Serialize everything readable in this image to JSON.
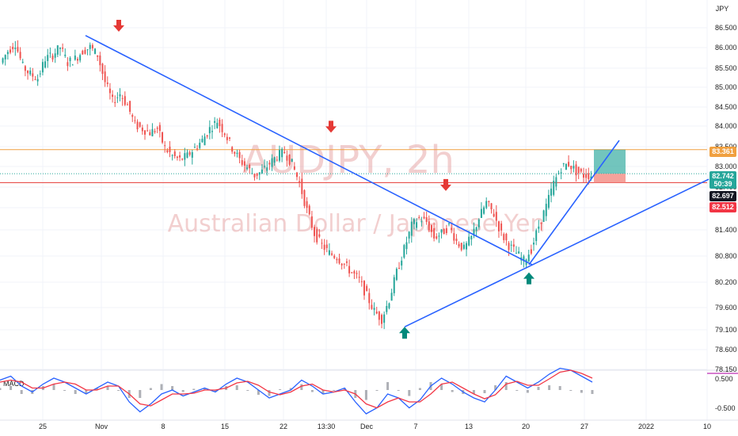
{
  "chart_data": {
    "type": "candlestick",
    "symbol_corner": "JPY",
    "watermark": {
      "symbol": "AUDJPY, 2h",
      "name": "Australian Dollar / Japanese Yen"
    },
    "y_axis": {
      "ticks": [
        "86.500",
        "86.000",
        "85.500",
        "85.000",
        "84.500",
        "84.000",
        "83.500",
        "83.000",
        "82.400",
        "81.900",
        "81.400",
        "80.800",
        "80.200",
        "79.600",
        "79.100",
        "78.600",
        "78.150"
      ],
      "range": [
        78.15,
        86.7
      ]
    },
    "x_axis": {
      "ticks": [
        "25",
        "Nov",
        "8",
        "15",
        "22",
        "13:30",
        "Dec",
        "7",
        "13",
        "20",
        "27",
        "2022",
        "10"
      ]
    },
    "price_tags": [
      {
        "label": "83.361",
        "value": 83.361,
        "color": "#f0a040",
        "text_color": "#ffffff"
      },
      {
        "label": "82.742",
        "sublabel": "50:39",
        "value": 82.742,
        "color": "#26a69a",
        "text_color": "#ffffff"
      },
      {
        "label": "82.697",
        "value": 82.697,
        "color": "#131722",
        "text_color": "#ffffff"
      },
      {
        "label": "82.512",
        "value": 82.512,
        "color": "#f23645",
        "text_color": "#ffffff"
      }
    ],
    "horizontal_lines": [
      {
        "name": "resistance",
        "value": 83.361,
        "color": "#f0a040"
      },
      {
        "name": "stop",
        "value": 82.512,
        "color": "#e53935"
      }
    ],
    "price_series": [
      85.6,
      85.9,
      86.1,
      85.5,
      85.3,
      85.2,
      85.7,
      85.8,
      86.0,
      85.6,
      85.7,
      85.9,
      86.0,
      85.8,
      85.1,
      84.6,
      84.8,
      84.5,
      84.0,
      83.9,
      83.8,
      83.9,
      83.4,
      83.2,
      83.1,
      83.2,
      83.4,
      83.6,
      83.9,
      84.1,
      83.8,
      83.4,
      83.1,
      82.9,
      82.7,
      82.8,
      83.0,
      83.2,
      83.3,
      83.0,
      82.5,
      81.8,
      81.2,
      80.9,
      80.7,
      80.6,
      80.4,
      80.2,
      80.0,
      79.6,
      79.2,
      79.0,
      79.5,
      80.2,
      80.8,
      81.4,
      81.6,
      81.5,
      81.1,
      81.2,
      81.4,
      81.0,
      80.8,
      81.1,
      81.6,
      82.0,
      81.7,
      81.2,
      80.9,
      80.7,
      80.5,
      80.8,
      81.4,
      81.9,
      82.5,
      82.9,
      83.0,
      82.8,
      82.7,
      82.7
    ],
    "trendlines": [
      {
        "name": "downtrend",
        "color": "#2962ff",
        "from": {
          "date": "Oct 20",
          "price": 86.3
        },
        "to": {
          "date": "Dec 18",
          "price": 80.4
        }
      },
      {
        "name": "uptrend-low",
        "color": "#2962ff",
        "from": {
          "date": "Dec 3",
          "price": 78.8
        },
        "to": {
          "date": "Jan 10",
          "price": 82.6
        }
      },
      {
        "name": "uptrend-steep",
        "color": "#2962ff",
        "from": {
          "date": "Dec 20",
          "price": 80.4
        },
        "to": {
          "date": "Dec 30",
          "price": 83.6
        }
      }
    ],
    "markers": [
      {
        "type": "down-arrow",
        "color": "#e53935",
        "date": "Nov 2",
        "price": 86.5
      },
      {
        "type": "down-arrow",
        "color": "#e53935",
        "date": "Nov 24",
        "price": 83.9
      },
      {
        "type": "down-arrow",
        "color": "#e53935",
        "date": "Dec 9",
        "price": 82.4
      },
      {
        "type": "up-arrow",
        "color": "#00897b",
        "date": "Dec 3",
        "price": 78.7
      },
      {
        "type": "up-arrow",
        "color": "#00897b",
        "date": "Dec 20",
        "price": 80.1
      }
    ],
    "position": {
      "entry": 82.742,
      "target": 83.361,
      "stop": 82.512,
      "profit_color": "#26a69a",
      "loss_color": "#f28b82"
    },
    "indicator": {
      "name": "MACD",
      "ticks": [
        "0.500",
        "-0.500"
      ],
      "macd_color": "#2962ff",
      "signal_color": "#f23645",
      "macd": [
        0.25,
        0.35,
        0.1,
        -0.05,
        0.15,
        0.3,
        0.2,
        0.05,
        -0.1,
        0.05,
        0.2,
        0.1,
        -0.3,
        -0.55,
        -0.35,
        -0.1,
        0.0,
        -0.15,
        -0.05,
        0.05,
        -0.05,
        0.15,
        0.3,
        0.2,
        0.0,
        -0.2,
        -0.1,
        0.0,
        0.25,
        0.1,
        -0.1,
        -0.05,
        0.05,
        -0.3,
        -0.6,
        -0.45,
        -0.1,
        -0.2,
        -0.45,
        -0.25,
        0.1,
        0.3,
        0.15,
        -0.05,
        -0.2,
        -0.3,
        0.0,
        0.35,
        0.2,
        0.05,
        0.2,
        0.4,
        0.55,
        0.5,
        0.35,
        0.2
      ],
      "signal": [
        0.2,
        0.25,
        0.2,
        0.05,
        0.05,
        0.15,
        0.2,
        0.15,
        0.0,
        0.0,
        0.1,
        0.1,
        -0.1,
        -0.35,
        -0.4,
        -0.25,
        -0.1,
        -0.1,
        -0.08,
        0.0,
        0.0,
        0.05,
        0.18,
        0.22,
        0.12,
        -0.05,
        -0.12,
        -0.05,
        0.1,
        0.15,
        0.0,
        -0.05,
        0.0,
        -0.1,
        -0.35,
        -0.45,
        -0.3,
        -0.2,
        -0.3,
        -0.3,
        -0.1,
        0.15,
        0.2,
        0.05,
        -0.1,
        -0.22,
        -0.12,
        0.15,
        0.22,
        0.12,
        0.12,
        0.28,
        0.45,
        0.5,
        0.42,
        0.3
      ]
    }
  }
}
